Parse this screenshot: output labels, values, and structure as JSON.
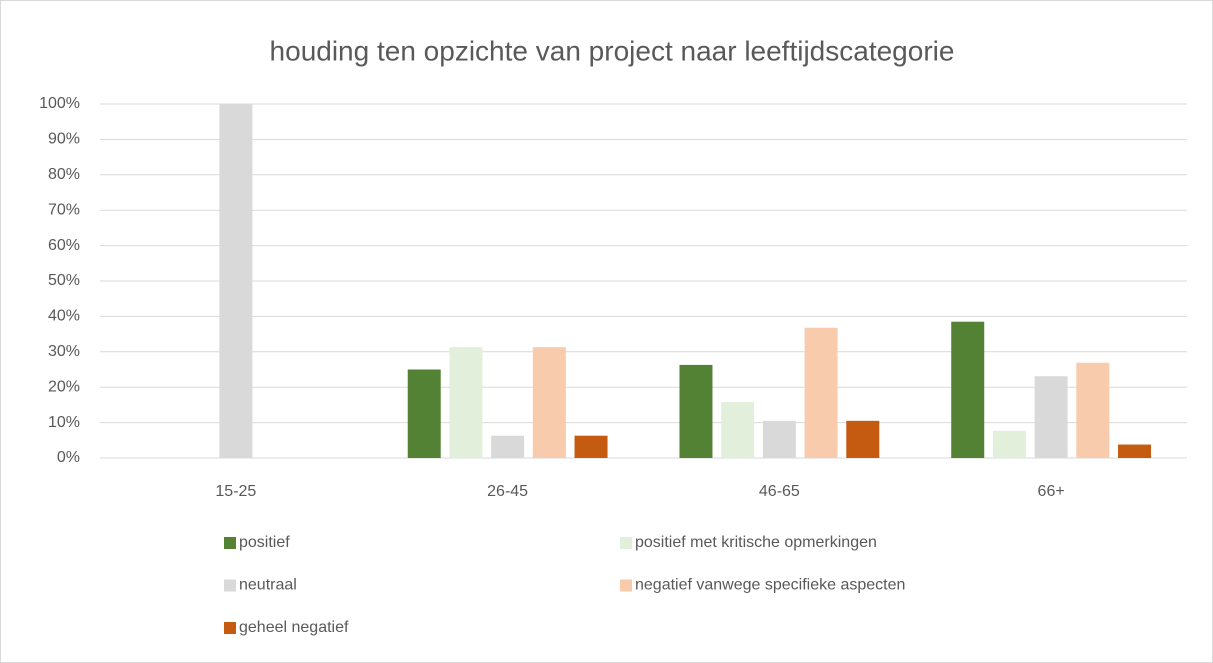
{
  "chart_data": {
    "type": "bar",
    "title": "houding ten opzichte van project naar leeftijdscategorie",
    "categories": [
      "15-25",
      "26-45",
      "46-65",
      "66+"
    ],
    "series": [
      {
        "name": "positief",
        "color": "#548235",
        "values": [
          0,
          25,
          26.3,
          38.5
        ]
      },
      {
        "name": "positief met kritische opmerkingen",
        "color": "#e2efda",
        "values": [
          0,
          31.3,
          15.8,
          7.7
        ]
      },
      {
        "name": "neutraal",
        "color": "#d9d9d9",
        "values": [
          100,
          6.3,
          10.5,
          23.1
        ]
      },
      {
        "name": "negatief vanwege specifieke aspecten",
        "color": "#f8cbad",
        "values": [
          0,
          31.3,
          36.8,
          26.9
        ]
      },
      {
        "name": "geheel negatief",
        "color": "#c55a11",
        "values": [
          0,
          6.3,
          10.5,
          3.8
        ]
      }
    ],
    "ylim": [
      0,
      100
    ],
    "yticks": [
      {
        "value": 0,
        "label": "0%"
      },
      {
        "value": 10,
        "label": "10%"
      },
      {
        "value": 20,
        "label": "20%"
      },
      {
        "value": 30,
        "label": "30%"
      },
      {
        "value": 40,
        "label": "40%"
      },
      {
        "value": 50,
        "label": "50%"
      },
      {
        "value": 60,
        "label": "60%"
      },
      {
        "value": 70,
        "label": "70%"
      },
      {
        "value": 80,
        "label": "80%"
      },
      {
        "value": 90,
        "label": "90%"
      },
      {
        "value": 100,
        "label": "100%"
      }
    ],
    "grid": true,
    "legend": "bottom"
  }
}
